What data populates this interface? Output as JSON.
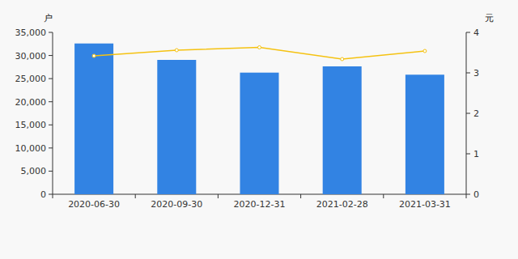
{
  "chart_data": {
    "type": "bar",
    "y_label": "户",
    "y2_label": "元",
    "categories": [
      "2020-06-30",
      "2020-09-30",
      "2020-12-31",
      "2021-02-28",
      "2021-03-31"
    ],
    "series": [
      {
        "type": "bar",
        "color": "#3283e3",
        "values": [
          32600,
          29050,
          26300,
          27650,
          25850
        ]
      },
      {
        "type": "line",
        "color": "#f5c211",
        "axis": "y2",
        "marker": "circle",
        "values": [
          3.42,
          3.56,
          3.63,
          3.34,
          3.54
        ]
      }
    ],
    "ylim": [
      0,
      35000
    ],
    "yticks": [
      0,
      {
        "value": 5000,
        "label": "5,000"
      },
      {
        "value": 10000,
        "label": "10,000"
      },
      {
        "value": 15000,
        "label": "15,000"
      },
      {
        "value": 20000,
        "label": "20,000"
      },
      {
        "value": 25000,
        "label": "25,000"
      },
      {
        "value": 30000,
        "label": "30,000"
      },
      {
        "value": 35000,
        "label": "35,000"
      }
    ],
    "y2lim": [
      0,
      4
    ],
    "y2ticks": [
      0,
      1,
      2,
      3,
      4
    ],
    "grid": false
  }
}
